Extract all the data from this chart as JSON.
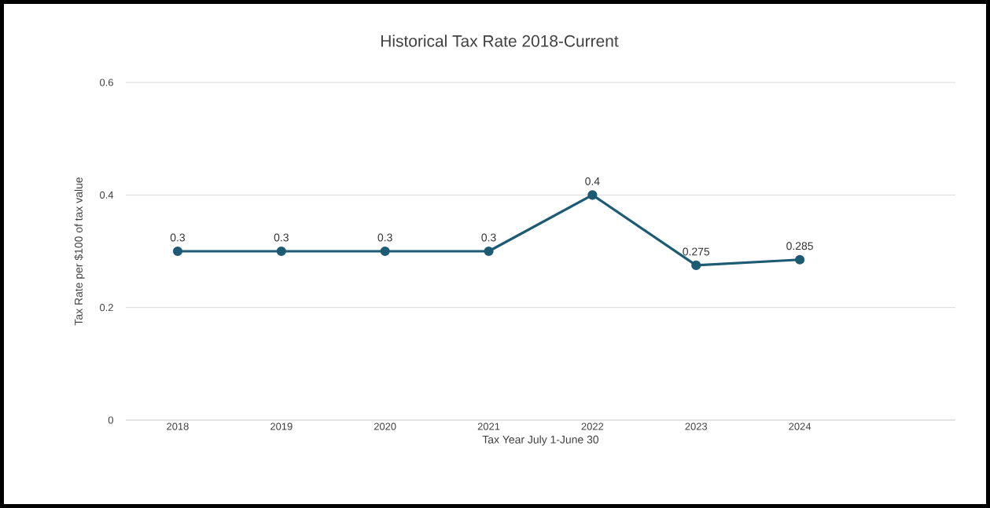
{
  "chart_data": {
    "type": "line",
    "title": "Historical Tax Rate 2018-Current",
    "xlabel": "Tax Year  July 1-June 30",
    "ylabel": "Tax Rate  per $100 of tax value",
    "categories": [
      "2018",
      "2019",
      "2020",
      "2021",
      "2022",
      "2023",
      "2024",
      null
    ],
    "values": [
      0.3,
      0.3,
      0.3,
      0.3,
      0.4,
      0.275,
      0.285,
      null
    ],
    "color": "#1d5a73",
    "ylim": [
      0,
      0.6
    ],
    "yticks": [
      0,
      0.2,
      0.4,
      0.6
    ],
    "grid": "y",
    "marker": "circle",
    "line_style": "solid",
    "data_labels": true
  }
}
